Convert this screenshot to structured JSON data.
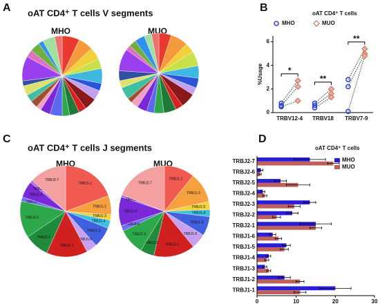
{
  "chart_data": [
    {
      "type": "pie",
      "panel_label": "A",
      "title": "oAT CD4⁺ T cells V segments",
      "subtitle": "MHO",
      "categories": [
        null,
        null,
        null,
        null,
        null,
        null,
        null,
        null,
        null,
        null,
        null,
        null,
        null,
        null,
        null,
        null,
        null,
        null,
        null,
        null,
        null,
        null,
        null,
        null
      ],
      "values": [
        7,
        6,
        5,
        4,
        6,
        3,
        4,
        5,
        3,
        4,
        3,
        5,
        4,
        2,
        3,
        3,
        4,
        2,
        10,
        3,
        4,
        2,
        5,
        3
      ],
      "colors": [
        "#e83a30",
        "#f59a3a",
        "#f2d03a",
        "#c9e04a",
        "#3fb8e0",
        "#2a55d8",
        "#c3a0f0",
        "#8a1a1a",
        "#d82020",
        "#1f7a3a",
        "#2ea84a",
        "#5a6af0",
        "#7a28d8",
        "#f0a0c0",
        "#a05030",
        "#40c0a0",
        "#e0e070",
        "#3050a0",
        "#9a40f0",
        "#e070c0",
        "#70b040",
        "#3090f0",
        "#a0e0a0",
        "#f07070"
      ]
    },
    {
      "type": "pie",
      "subtitle": "MUO",
      "categories": [
        null,
        null,
        null,
        null,
        null,
        null,
        null,
        null,
        null,
        null,
        null,
        null,
        null,
        null,
        null,
        null,
        null,
        null,
        null,
        null,
        null,
        null,
        null,
        null
      ],
      "values": [
        5,
        7,
        4,
        6,
        5,
        4,
        3,
        6,
        3,
        5,
        4,
        3,
        4,
        3,
        2,
        5,
        3,
        4,
        9,
        2,
        3,
        4,
        3,
        3
      ],
      "colors": [
        "#e83a30",
        "#f59a3a",
        "#f2d03a",
        "#c9e04a",
        "#3fb8e0",
        "#2a55d8",
        "#c3a0f0",
        "#8a1a1a",
        "#d82020",
        "#1f7a3a",
        "#2ea84a",
        "#5a6af0",
        "#7a28d8",
        "#f0a0c0",
        "#a05030",
        "#40c0a0",
        "#e0e070",
        "#3050a0",
        "#9a40f0",
        "#e070c0",
        "#70b040",
        "#3090f0",
        "#a0e0a0",
        "#f07070"
      ]
    },
    {
      "type": "paired_dot",
      "panel_label": "B",
      "title": "oAT CD4⁺ T cells",
      "ylabel": "%Usage",
      "categories": [
        "TRBV12-4",
        "TRBV18",
        "TRBV7-9"
      ],
      "annotations": [
        "*",
        "**",
        "**"
      ],
      "series": [
        {
          "name": "MHO",
          "color": "#2a3fd6",
          "values": [
            [
              0.8,
              0.6,
              0.5
            ],
            [
              0.8,
              0.6,
              0.4
            ],
            [
              2.8,
              2.2,
              0.1
            ]
          ]
        },
        {
          "name": "MUO",
          "color": "#c8705a",
          "values": [
            [
              2.7,
              2.2,
              1.0
            ],
            [
              2.0,
              1.6,
              1.3
            ],
            [
              5.4,
              5.0,
              4.8
            ]
          ]
        }
      ],
      "ylim": [
        0,
        6.5
      ],
      "yticks": [
        0,
        2,
        4,
        6
      ]
    },
    {
      "type": "pie",
      "panel_label": "C",
      "title": "oAT CD4⁺ T cells J segments",
      "subtitle": "MHO",
      "categories": [
        "TRBJ1-1",
        "TRBJ1-2",
        "TRBJ1-3",
        "TRBJ1-4",
        "TRBJ1-5",
        "TRBJ1-6",
        "TRBJ2-1",
        "TRBJ2-2",
        "TRBJ2-3",
        "TRBJ2-4",
        "TRBJ2-5",
        "TRBJ2-6",
        "TRBJ2-7"
      ],
      "values": [
        20,
        7,
        2,
        3,
        7.5,
        4,
        15,
        9,
        13.5,
        1.5,
        6,
        1,
        13.5
      ],
      "colors": [
        "#f05a50",
        "#f7a040",
        "#f2d23a",
        "#3cc0e0",
        "#4060e0",
        "#c8a0f0",
        "#d02020",
        "#1f8a3a",
        "#2da84a",
        "#7070f0",
        "#7a28d8",
        "#b070e0",
        "#f4a0a0"
      ]
    },
    {
      "type": "pie",
      "subtitle": "MUO",
      "categories": [
        "TRBJ1-1",
        "TRBJ1-2",
        "TRBJ1-3",
        "TRBJ1-4",
        "TRBJ1-5",
        "TRBJ1-6",
        "TRBJ2-1",
        "TRBJ2-2",
        "TRBJ2-3",
        "TRBJ2-4",
        "TRBJ2-5",
        "TRBJ2-6",
        "TRBJ2-7"
      ],
      "values": [
        11,
        11,
        3,
        2.5,
        7,
        5.5,
        15,
        5,
        9.5,
        2,
        10.5,
        0.8,
        19.5
      ],
      "colors": [
        "#f05a50",
        "#f7a040",
        "#f2d23a",
        "#3cc0e0",
        "#4060e0",
        "#c8a0f0",
        "#d02020",
        "#1f8a3a",
        "#2da84a",
        "#7070f0",
        "#7a28d8",
        "#b070e0",
        "#f4a0a0"
      ]
    },
    {
      "type": "hbar",
      "panel_label": "D",
      "title": "oAT CD4⁺ T cells",
      "categories": [
        "TRBJ1-1",
        "TRBJ1-2",
        "TRBJ1-3",
        "TRBJ1-4",
        "TRBJ1-5",
        "TRBJ1-6",
        "TRBJ2-1",
        "TRBJ2-2",
        "TRBJ2-3",
        "TRBJ2-4",
        "TRBJ2-5",
        "TRBJ2-6",
        "TRBJ2-7"
      ],
      "series": [
        {
          "name": "MHO",
          "color": "#2a1fd6",
          "values": [
            20,
            7,
            2,
            3,
            7.5,
            4,
            15,
            9,
            13.5,
            1.5,
            6,
            1,
            13.5
          ],
          "errors": [
            4,
            1.5,
            0.5,
            0.5,
            1,
            0.8,
            4,
            1.5,
            1.5,
            0.5,
            1.5,
            0.5,
            4
          ]
        },
        {
          "name": "MUO",
          "color": "#c0605a",
          "values": [
            11,
            11,
            3,
            2.5,
            7,
            5.5,
            15,
            5,
            9.5,
            2,
            10.5,
            0.8,
            19.5
          ],
          "errors": [
            1.5,
            1,
            0.5,
            0.5,
            1,
            0.8,
            1.5,
            1,
            1.5,
            0.5,
            3,
            0.3,
            1.5
          ]
        }
      ],
      "xlim": [
        0,
        30
      ],
      "xticks": [
        0,
        10,
        20,
        30
      ]
    }
  ]
}
